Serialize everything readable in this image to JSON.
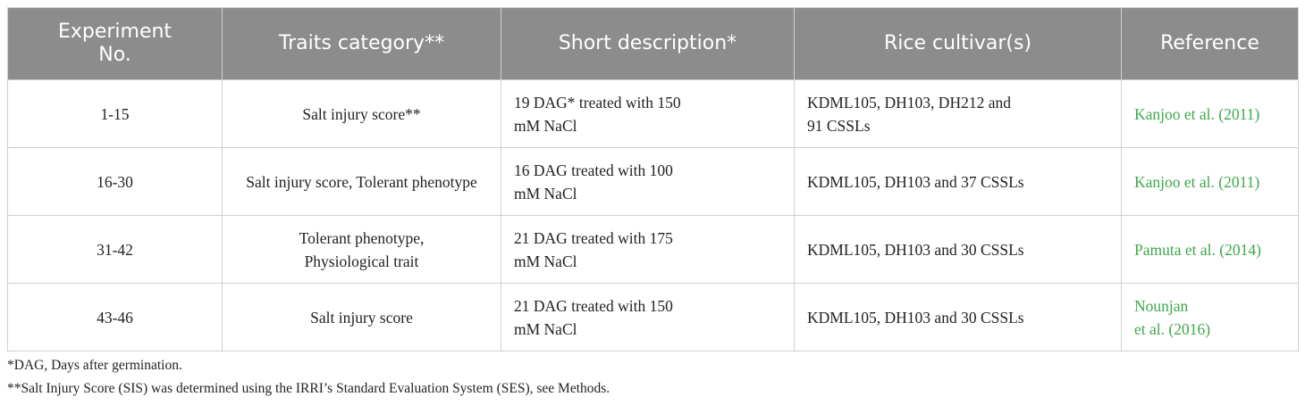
{
  "table": {
    "header": [
      "Experiment No.",
      "Traits category**",
      "Short description*",
      "Rice cultivar(s)",
      "Reference"
    ],
    "rows": [
      [
        [
          "1-15"
        ],
        [
          "Salt injury score**"
        ],
        [
          "19 DAG* treated with 150",
          "mM NaCl"
        ],
        [
          "KDML105, DH103, DH212 and",
          "91 CSSLs"
        ],
        [
          "Kanjoo et al. (2011)"
        ]
      ],
      [
        [
          "16-30"
        ],
        [
          "Salt injury score, Tolerant phenotype"
        ],
        [
          "16 DAG treated with 100",
          "mM NaCl"
        ],
        [
          "KDML105, DH103 and 37 CSSLs"
        ],
        [
          "Kanjoo et al. (2011)"
        ]
      ],
      [
        [
          "31-42"
        ],
        [
          "Tolerant phenotype,",
          "Physiological trait"
        ],
        [
          "21 DAG treated with 175",
          "mM NaCl"
        ],
        [
          "KDML105, DH103 and 30 CSSLs"
        ],
        [
          "Pamuta et al. (2014)"
        ]
      ],
      [
        [
          "43-46"
        ],
        [
          "Salt injury score"
        ],
        [
          "21 DAG treated with 150",
          "mM NaCl"
        ],
        [
          "KDML105, DH103 and 30 CSSLs"
        ],
        [
          "Nounjan",
          "et al. (2016)"
        ]
      ]
    ]
  },
  "footnotes": [
    "*DAG, Days after germination.",
    "**Salt Injury Score (SIS) was determined using the IRRI’s Standard Evaluation System (SES), see Methods."
  ]
}
